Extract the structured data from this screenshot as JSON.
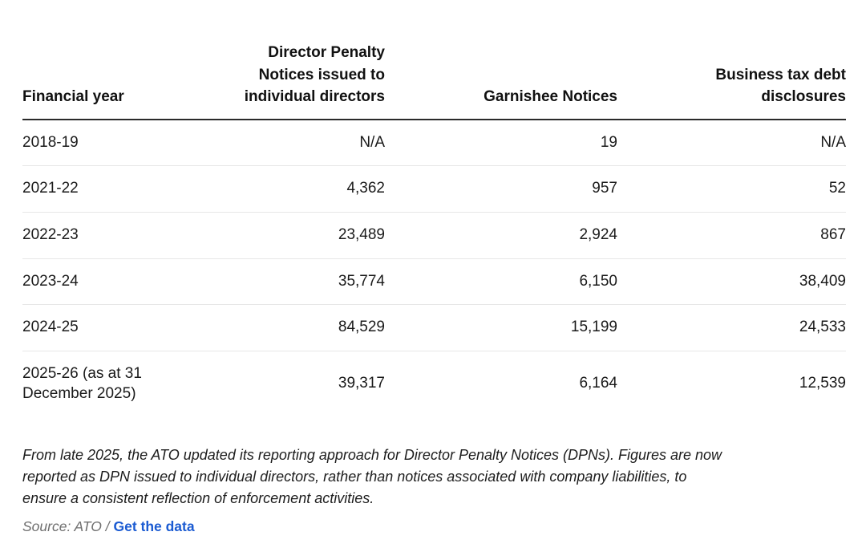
{
  "chart_data": {
    "type": "table",
    "columns": [
      "Financial year",
      "Director Penalty Notices issued to individual directors",
      "Garnishee Notices",
      "Business tax debt disclosures"
    ],
    "rows": [
      [
        "2018-19",
        "N/A",
        "19",
        "N/A"
      ],
      [
        "2021-22",
        "4,362",
        "957",
        "52"
      ],
      [
        "2022-23",
        "23,489",
        "2,924",
        "867"
      ],
      [
        "2023-24",
        "35,774",
        "6,150",
        "38,409"
      ],
      [
        "2024-25",
        "84,529",
        "15,199",
        "24,533"
      ],
      [
        "2025-26 (as at 31 December 2025)",
        "39,317",
        "6,164",
        "12,539"
      ]
    ]
  },
  "note": {
    "lines": [
      "From late 2025, the ATO updated its reporting approach for Director Penalty Notices (DPNs). Figures are now",
      "reported as DPN issued to individual directors, rather than notices associated with company liabilities, to",
      "ensure a consistent reflection of enforcement activities."
    ]
  },
  "source": {
    "prefix": "Source: ATO / ",
    "link_label": "Get the data"
  },
  "colors": {
    "link_blue": "#1b5bd2",
    "header_rule": "#2a2a2a",
    "row_rule": "#e7e7e7",
    "muted_gray": "#6f6f6f",
    "text": "#1a1a1a"
  }
}
